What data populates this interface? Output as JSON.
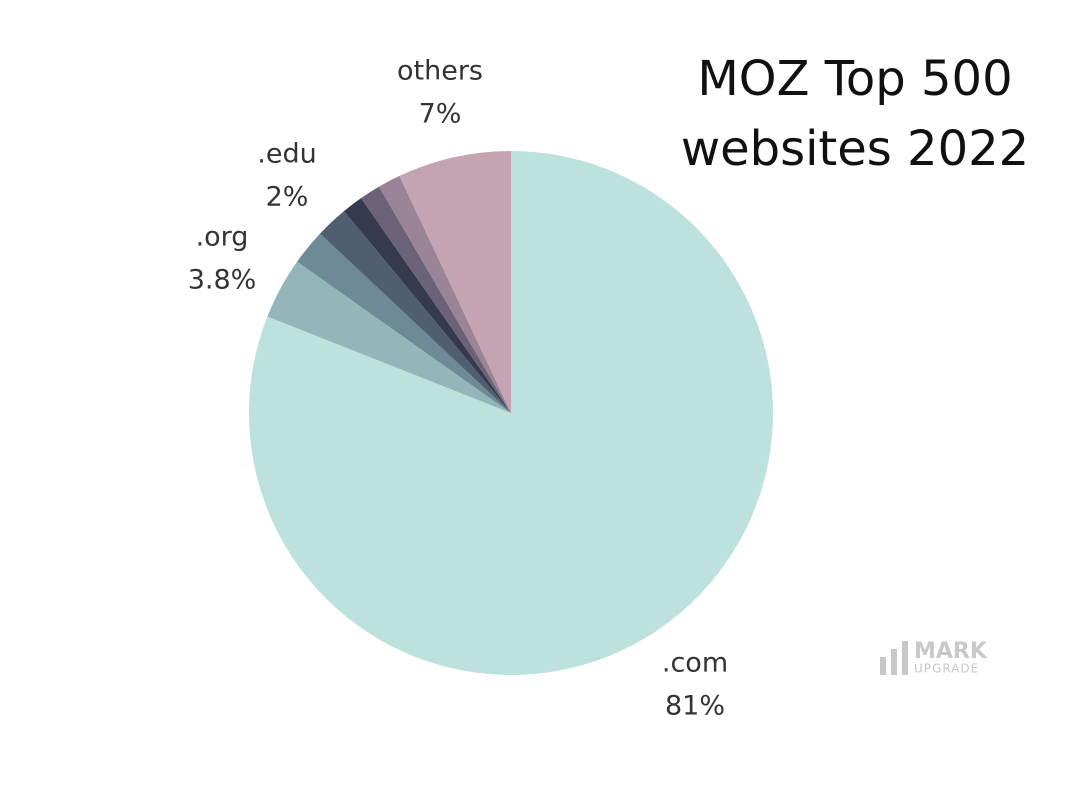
{
  "chart_data": {
    "type": "pie",
    "title": "MOZ Top 500 websites 2022",
    "categories": [
      ".com",
      ".org",
      null,
      ".edu",
      null,
      null,
      null,
      "others"
    ],
    "values": [
      81,
      3.8,
      2.2,
      2,
      1.3,
      1.3,
      1.4,
      7
    ],
    "value_labels": [
      "81%",
      "3.8%",
      null,
      "2%",
      null,
      null,
      null,
      "7%"
    ],
    "colors": [
      "#bde1dd",
      "#94b5b9",
      "#6f8a97",
      "#4f5e70",
      "#363a4f",
      "#6b6178",
      "#9a8496",
      "#c4a4b2"
    ]
  },
  "watermark": {
    "line1": "MARK",
    "line2": "UPGRADE"
  }
}
